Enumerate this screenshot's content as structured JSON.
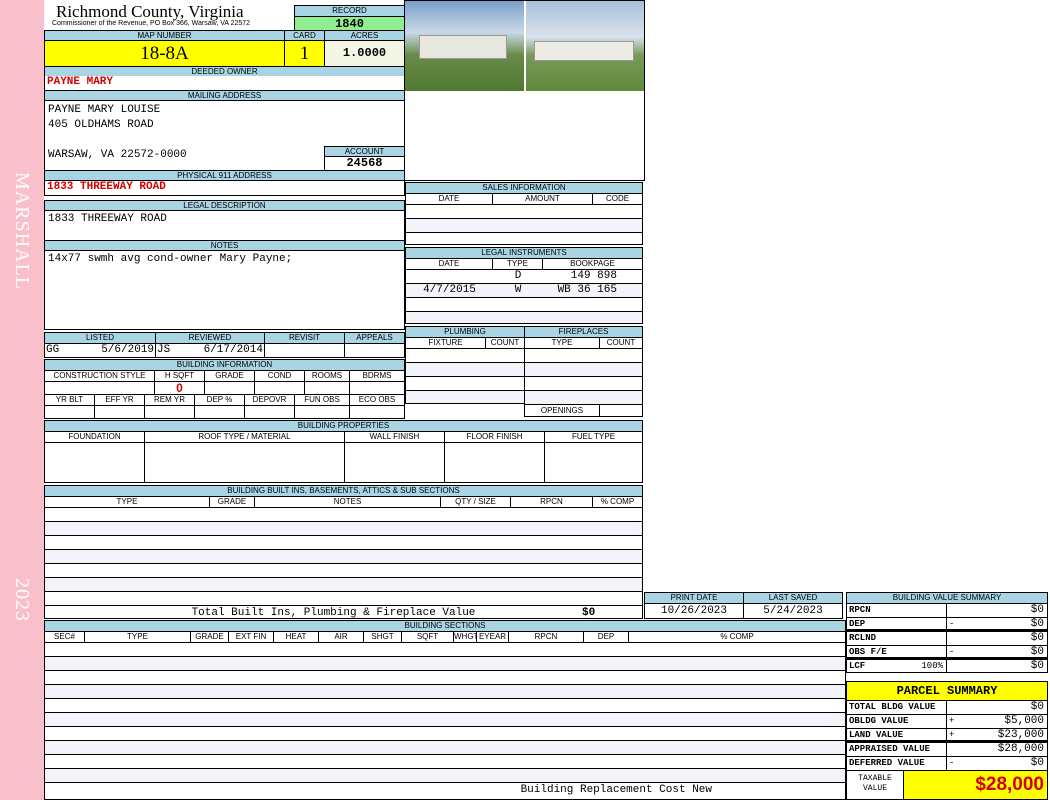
{
  "sidebar": {
    "district": "MARSHALL",
    "year": "2023"
  },
  "header": {
    "county": "Richmond County, Virginia",
    "office": "Commissioner of the Revenue, PO Box 366, Warsaw, VA 22572",
    "record_label": "RECORD",
    "record": "1840"
  },
  "parcel": {
    "map_label": "MAP NUMBER",
    "map": "18-8A",
    "card_label": "CARD",
    "card": "1",
    "acres_label": "ACRES",
    "acres": "1.0000"
  },
  "owner": {
    "label": "DEEDED OWNER",
    "name": "PAYNE MARY"
  },
  "mailing": {
    "label": "MAILING ADDRESS",
    "line1": "PAYNE MARY LOUISE",
    "line2": "405 OLDHAMS ROAD",
    "line3": "WARSAW, VA 22572-0000",
    "account_label": "ACCOUNT",
    "account": "24568"
  },
  "physical": {
    "label": "PHYSICAL 911 ADDRESS",
    "address": "1833 THREEWAY ROAD"
  },
  "legal": {
    "label": "LEGAL DESCRIPTION",
    "text": "1833 THREEWAY ROAD"
  },
  "notes": {
    "label": "NOTES",
    "text": "14x77 swmh avg cond-owner Mary Payne;"
  },
  "review": {
    "cols": [
      "LISTED",
      "REVIEWED",
      "REVISIT",
      "APPEALS"
    ],
    "listed_by": "GG",
    "listed_date": "5/6/2019",
    "reviewed_by": "JS",
    "reviewed_date": "6/17/2014"
  },
  "building_info": {
    "label": "BUILDING INFORMATION",
    "cols1": [
      "CONSTRUCTION STYLE",
      "H SQFT",
      "GRADE",
      "COND",
      "ROOMS",
      "BDRMS"
    ],
    "hsqft": "0",
    "cols2": [
      "YR BLT",
      "EFF YR",
      "REM YR",
      "DEP %",
      "DEPOVR",
      "FUN OBS",
      "ECO OBS"
    ]
  },
  "sales": {
    "label": "SALES INFORMATION",
    "cols": [
      "DATE",
      "AMOUNT",
      "CODE"
    ]
  },
  "instruments": {
    "label": "LEGAL INSTRUMENTS",
    "cols": [
      "DATE",
      "TYPE",
      "BOOKPAGE"
    ],
    "rows": [
      {
        "date": "",
        "type": "D",
        "book": "149 898"
      },
      {
        "date": "4/7/2015",
        "type": "W",
        "book": "WB 36 165"
      }
    ]
  },
  "plumbing": {
    "label": "PLUMBING",
    "cols": [
      "FIXTURE",
      "COUNT"
    ]
  },
  "fireplaces": {
    "label": "FIREPLACES",
    "cols": [
      "TYPE",
      "COUNT"
    ],
    "openings": "OPENINGS"
  },
  "properties": {
    "label": "BUILDING PROPERTIES",
    "cols": [
      "FOUNDATION",
      "ROOF TYPE / MATERIAL",
      "WALL FINISH",
      "FLOOR FINISH",
      "FUEL TYPE"
    ]
  },
  "builtins": {
    "label": "BUILDING BUILT INS, BASEMENTS, ATTICS & SUB SECTIONS",
    "cols": [
      "TYPE",
      "GRADE",
      "NOTES",
      "QTY / SIZE",
      "RPCN",
      "% COMP"
    ],
    "total_label": "Total Built Ins, Plumbing & Fireplace Value",
    "total": "$0"
  },
  "dates": {
    "print_label": "PRINT DATE",
    "print": "10/26/2023",
    "saved_label": "LAST SAVED",
    "saved": "5/24/2023"
  },
  "sections": {
    "label": "BUILDING SECTIONS",
    "cols": [
      "SEC#",
      "TYPE",
      "GRADE",
      "EXT FIN",
      "HEAT",
      "AIR",
      "SHGT",
      "SQFT",
      "WHGT",
      "EYEAR",
      "RPCN",
      "DEP",
      "% COMP"
    ],
    "footer": "Building Replacement Cost New"
  },
  "value_summary": {
    "label": "BUILDING VALUE SUMMARY",
    "rows": [
      {
        "label": "RPCN",
        "sign": "",
        "value": "$0"
      },
      {
        "label": "DEP",
        "sign": "-",
        "value": "$0"
      },
      {
        "label": "RCLND",
        "sign": "",
        "value": "$0"
      },
      {
        "label": "OBS F/E",
        "sign": "-",
        "value": "$0"
      },
      {
        "label": "LCF",
        "pct": "100%",
        "sign": "",
        "value": "$0"
      }
    ]
  },
  "parcel_summary": {
    "label": "PARCEL SUMMARY",
    "rows": [
      {
        "label": "TOTAL BLDG VALUE",
        "sign": "",
        "value": "$0"
      },
      {
        "label": "OBLDG VALUE",
        "sign": "+",
        "value": "$5,000"
      },
      {
        "label": "LAND VALUE",
        "sign": "+",
        "value": "$23,000"
      },
      {
        "label": "APPRAISED VALUE",
        "sign": "",
        "value": "$28,000"
      },
      {
        "label": "DEFERRED VALUE",
        "sign": "-",
        "value": "$0"
      }
    ],
    "taxable_label": "TAXABLE VALUE",
    "taxable": "$28,000"
  },
  "colors": {
    "header_blue": "#a9d4e4",
    "highlight_yellow": "#ffff00",
    "record_green": "#90ee90",
    "alert_red": "#d40000",
    "sidebar_pink": "#f9c0cb"
  }
}
